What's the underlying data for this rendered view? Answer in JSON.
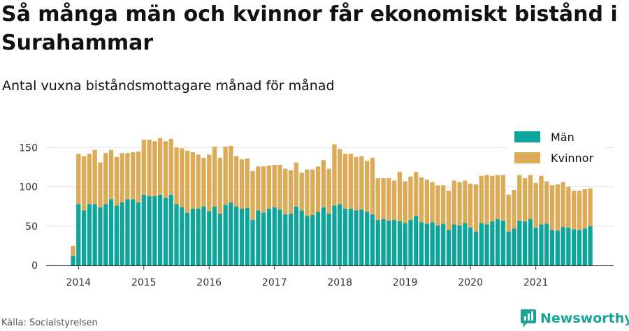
{
  "title": "Så många män och kvinnor får ekonomiskt bistånd i Surahammar",
  "subtitle": "Antal vuxna biståndsmottagare månad för månad",
  "source": "Källa: Socialstyrelsen",
  "brand": {
    "name": "Newsworthy",
    "icon": "newsworthy-logo-icon",
    "color": "#1aa39a"
  },
  "colors": {
    "men": "#10a59a",
    "women": "#dcab58",
    "grid": "#e0e0e0",
    "axis": "#333333"
  },
  "chart_data": {
    "type": "bar",
    "stacked": true,
    "title": "Så många män och kvinnor får ekonomiskt bistånd i Surahammar",
    "subtitle": "Antal vuxna biståndsmottagare månad för månad",
    "xlabel": "",
    "ylabel": "",
    "ylim": [
      0,
      160
    ],
    "yticks": [
      0,
      50,
      100,
      150
    ],
    "xticks": [
      "2014",
      "2015",
      "2016",
      "2017",
      "2018",
      "2019",
      "2020",
      "2021"
    ],
    "x_start": "2013-12",
    "grid": "horizontal",
    "legend_position": "top-right",
    "categories": [
      "2013-12",
      "2014-01",
      "2014-02",
      "2014-03",
      "2014-04",
      "2014-05",
      "2014-06",
      "2014-07",
      "2014-08",
      "2014-09",
      "2014-10",
      "2014-11",
      "2014-12",
      "2015-01",
      "2015-02",
      "2015-03",
      "2015-04",
      "2015-05",
      "2015-06",
      "2015-07",
      "2015-08",
      "2015-09",
      "2015-10",
      "2015-11",
      "2015-12",
      "2016-01",
      "2016-02",
      "2016-03",
      "2016-04",
      "2016-05",
      "2016-06",
      "2016-07",
      "2016-08",
      "2016-09",
      "2016-10",
      "2016-11",
      "2016-12",
      "2017-01",
      "2017-02",
      "2017-03",
      "2017-04",
      "2017-05",
      "2017-06",
      "2017-07",
      "2017-08",
      "2017-09",
      "2017-10",
      "2017-11",
      "2017-12",
      "2018-01",
      "2018-02",
      "2018-03",
      "2018-04",
      "2018-05",
      "2018-06",
      "2018-07",
      "2018-08",
      "2018-09",
      "2018-10",
      "2018-11",
      "2018-12",
      "2019-01",
      "2019-02",
      "2019-03",
      "2019-04",
      "2019-05",
      "2019-06",
      "2019-07",
      "2019-08",
      "2019-09",
      "2019-10",
      "2019-11",
      "2019-12",
      "2020-01",
      "2020-02",
      "2020-03",
      "2020-04",
      "2020-05",
      "2020-06",
      "2020-07",
      "2020-08",
      "2020-09",
      "2020-10",
      "2020-11",
      "2020-12",
      "2021-01",
      "2021-02",
      "2021-03",
      "2021-04",
      "2021-05",
      "2021-06",
      "2021-07",
      "2021-08",
      "2021-09",
      "2021-10",
      "2021-11"
    ],
    "series": [
      {
        "name": "Män",
        "values": [
          12,
          78,
          70,
          78,
          78,
          74,
          78,
          84,
          76,
          80,
          84,
          84,
          80,
          90,
          88,
          88,
          90,
          86,
          90,
          78,
          74,
          67,
          72,
          72,
          75,
          69,
          75,
          66,
          77,
          80,
          75,
          72,
          73,
          58,
          70,
          67,
          72,
          74,
          71,
          65,
          66,
          75,
          70,
          63,
          64,
          68,
          74,
          66,
          76,
          78,
          72,
          72,
          70,
          71,
          68,
          65,
          58,
          59,
          57,
          58,
          56,
          54,
          58,
          63,
          55,
          53,
          55,
          51,
          53,
          45,
          52,
          51,
          54,
          48,
          43,
          54,
          52,
          56,
          59,
          57,
          43,
          47,
          57,
          56,
          59,
          48,
          52,
          53,
          45,
          44,
          49,
          48,
          46,
          45,
          47,
          50
        ]
      },
      {
        "name": "Kvinnor",
        "values": [
          13,
          64,
          69,
          64,
          69,
          57,
          65,
          63,
          62,
          63,
          59,
          60,
          65,
          70,
          72,
          70,
          72,
          72,
          71,
          72,
          75,
          79,
          72,
          69,
          62,
          72,
          76,
          71,
          74,
          72,
          64,
          63,
          63,
          62,
          56,
          59,
          55,
          54,
          57,
          58,
          55,
          56,
          48,
          59,
          58,
          58,
          60,
          57,
          78,
          70,
          70,
          70,
          68,
          68,
          65,
          72,
          53,
          52,
          54,
          50,
          63,
          53,
          55,
          56,
          57,
          56,
          51,
          51,
          49,
          50,
          56,
          55,
          54,
          56,
          60,
          60,
          63,
          58,
          56,
          58,
          47,
          49,
          58,
          55,
          56,
          57,
          62,
          54,
          57,
          59,
          57,
          52,
          49,
          50,
          50,
          48
        ]
      }
    ]
  }
}
